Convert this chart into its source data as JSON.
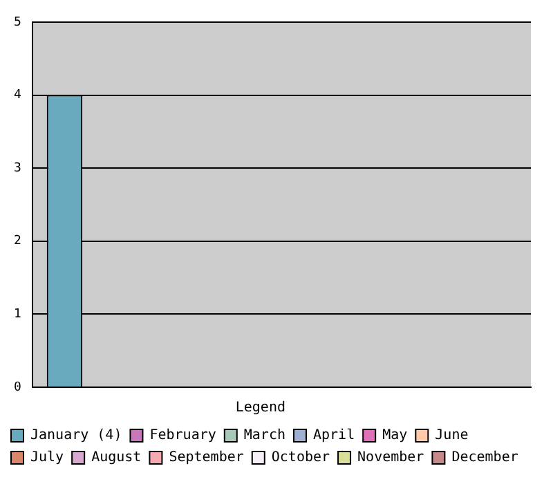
{
  "chart_data": {
    "type": "bar",
    "legend_title": "Legend",
    "legend": "bottom",
    "grid": "y",
    "tick_labels": "y",
    "categories": [
      null
    ],
    "series": [
      {
        "name": "January (4)",
        "color": "#6aaabf",
        "values": [
          4
        ]
      },
      {
        "name": "February",
        "color": "#c878b8",
        "values": [
          0
        ]
      },
      {
        "name": "March",
        "color": "#a8c8b8",
        "values": [
          0
        ]
      },
      {
        "name": "April",
        "color": "#a0b0d0",
        "values": [
          0
        ]
      },
      {
        "name": "May",
        "color": "#e070b8",
        "values": [
          0
        ]
      },
      {
        "name": "June",
        "color": "#ffc8a8",
        "values": [
          0
        ]
      },
      {
        "name": "July",
        "color": "#d88868",
        "values": [
          0
        ]
      },
      {
        "name": "August",
        "color": "#d8a8d0",
        "values": [
          0
        ]
      },
      {
        "name": "September",
        "color": "#f8a8b0",
        "values": [
          0
        ]
      },
      {
        "name": "October",
        "color": "#f8f0f8",
        "values": [
          0
        ]
      },
      {
        "name": "November",
        "color": "#d8e098",
        "values": [
          0
        ]
      },
      {
        "name": "December",
        "color": "#c88888",
        "values": [
          0
        ]
      }
    ],
    "ylim": [
      0,
      5
    ],
    "yticks": [
      0,
      1,
      2,
      3,
      4,
      5
    ]
  }
}
